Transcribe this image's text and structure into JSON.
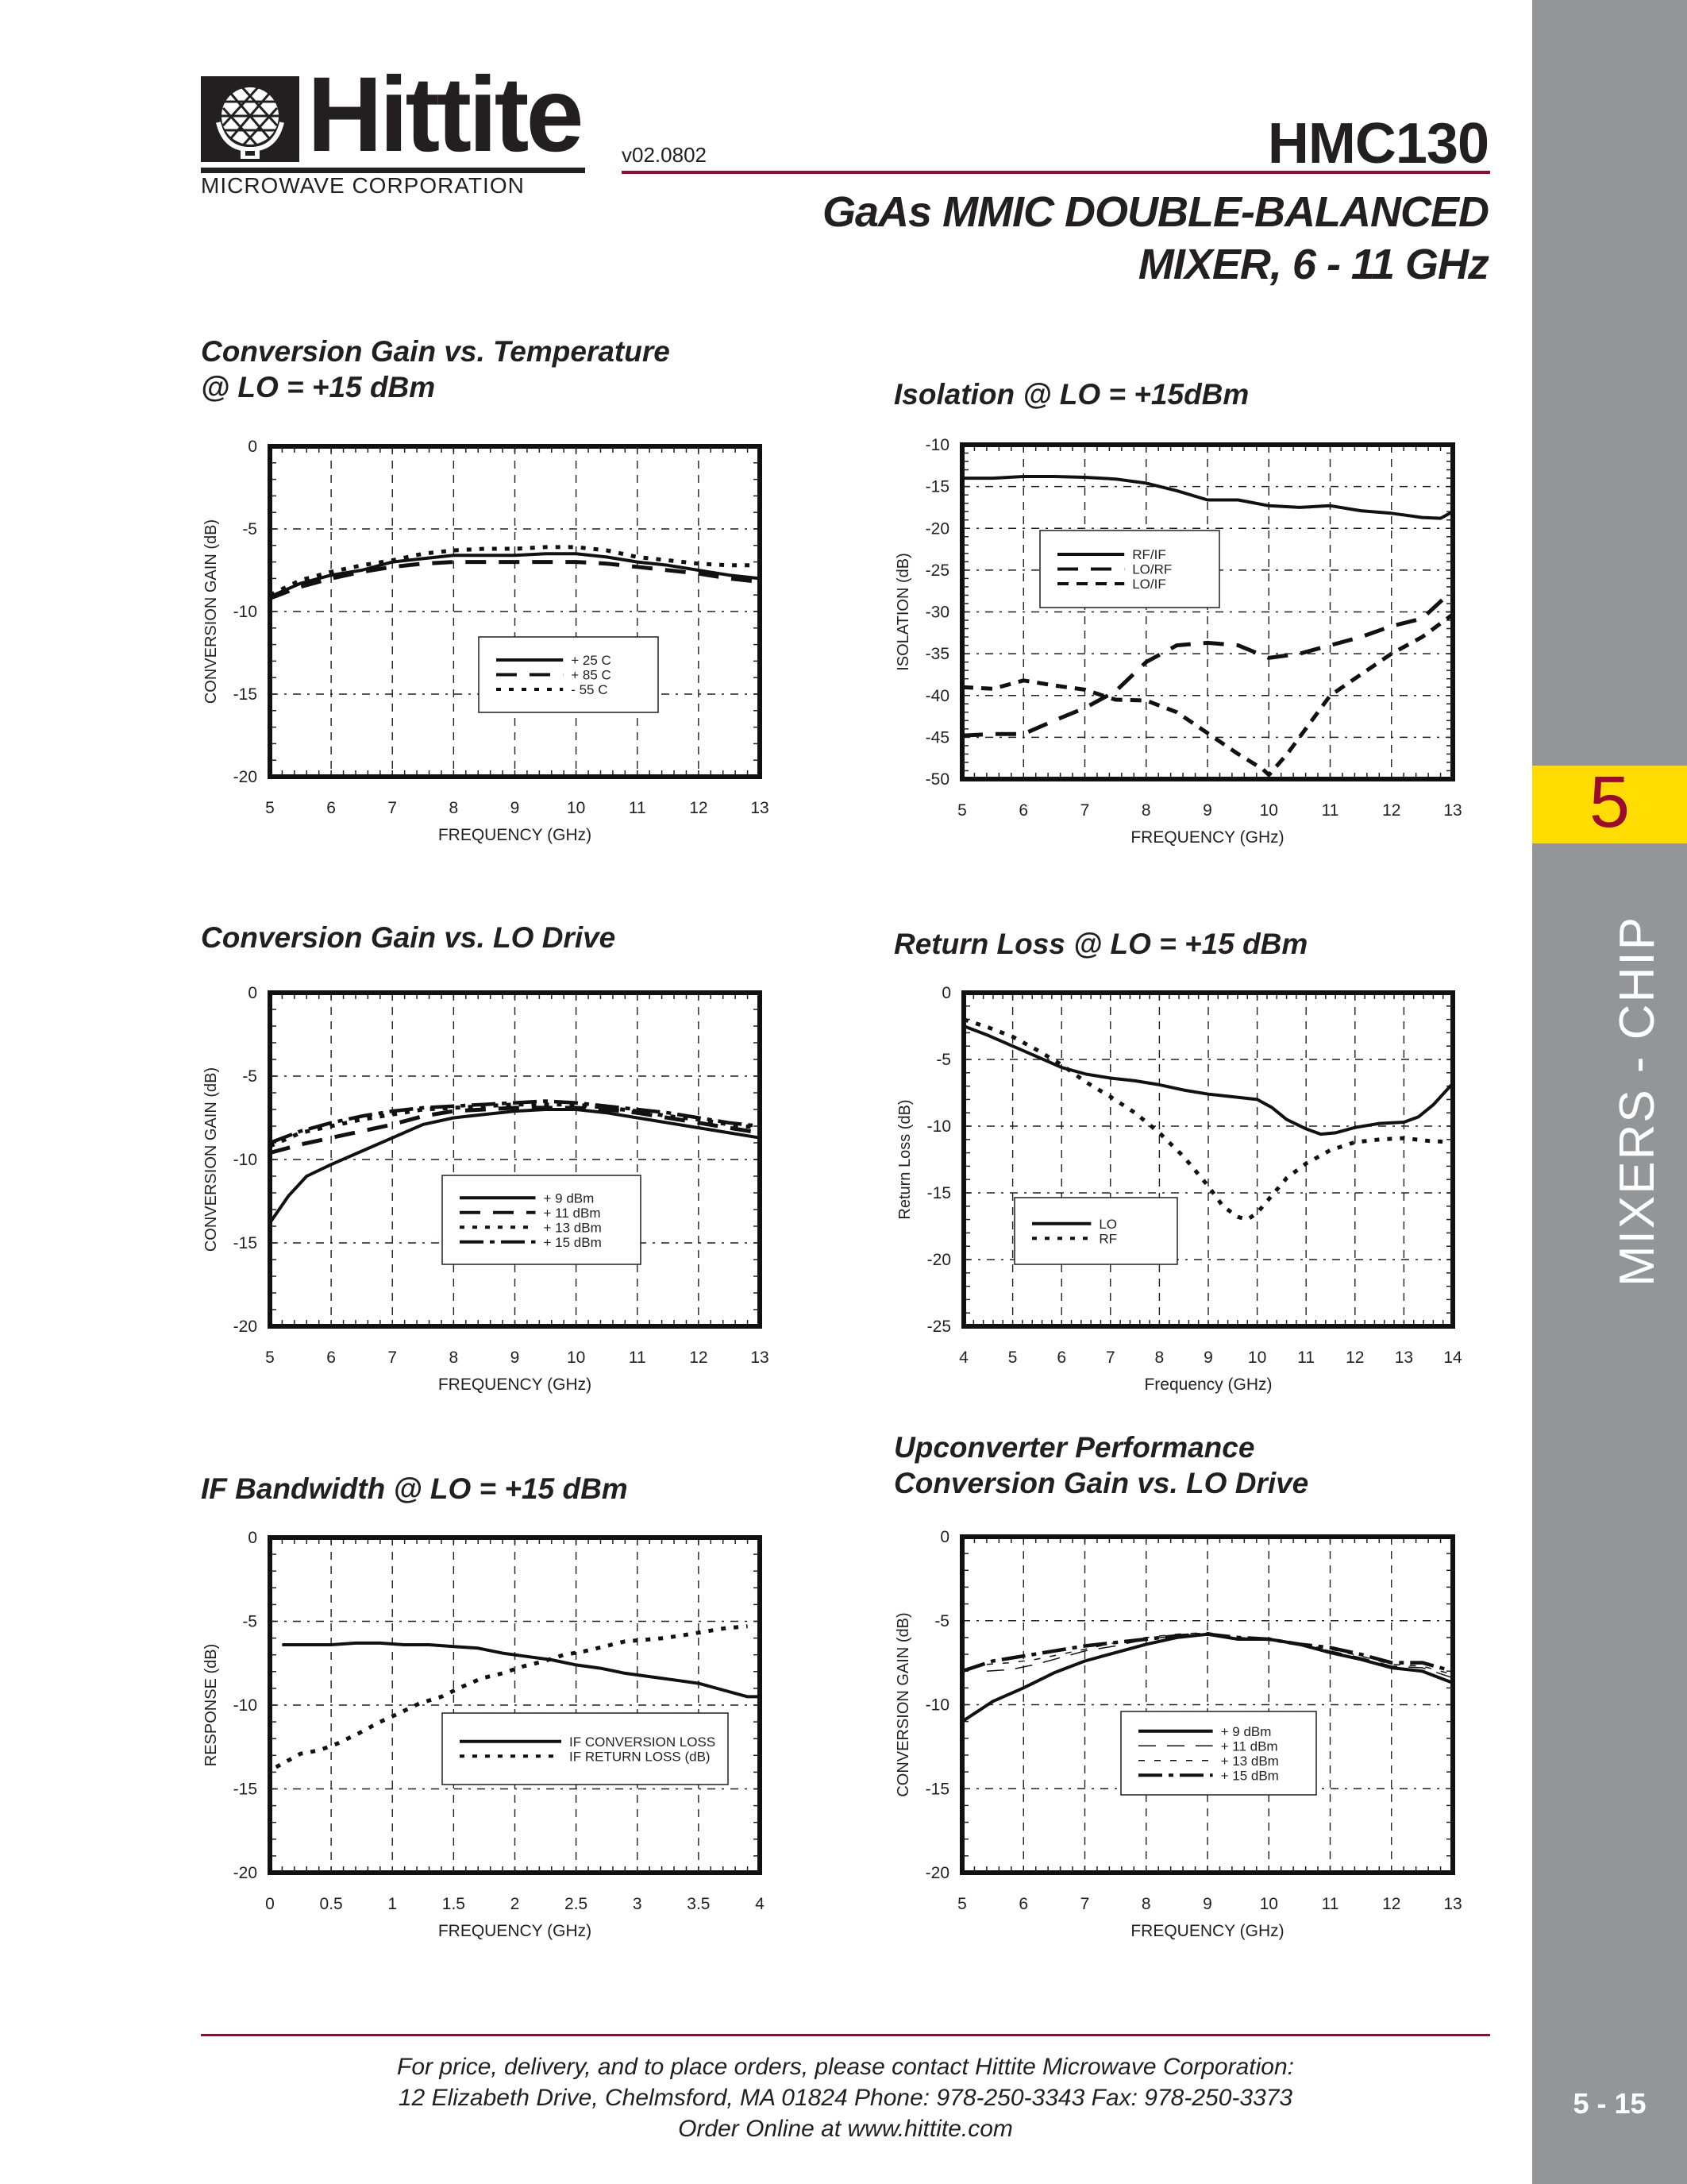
{
  "header": {
    "logo_word": "Hittite",
    "logo_corp": "MICROWAVE CORPORATION",
    "version": "v02.0802",
    "part_number": "HMC130",
    "subtitle_line1": "GaAs MMIC DOUBLE-BALANCED",
    "subtitle_line2": "MIXER, 6 - 11 GHz"
  },
  "sidebar": {
    "section_number": "5",
    "section_label": "MIXERS - CHIP",
    "page_number": "5 - 15"
  },
  "footer": {
    "line1": "For price, delivery, and to place orders, please contact Hittite Microwave Corporation:",
    "line2": "12 Elizabeth Drive, Chelmsford, MA 01824 Phone: 978-250-3343  Fax: 978-250-3373",
    "line3": "Order Online at www.hittite.com"
  },
  "colors": {
    "accent_red": "#9b0a2e",
    "tab_yellow": "#ffdd00",
    "sidebar_gray": "#939598",
    "ink": "#231f20"
  },
  "chart_data": [
    {
      "id": "gain_vs_temp",
      "type": "line",
      "title": "Conversion Gain vs. Temperature @ LO = +15 dBm",
      "title_lines": [
        "Conversion Gain vs. Temperature",
        "@ LO = +15 dBm"
      ],
      "xlabel": "FREQUENCY (GHz)",
      "ylabel": "CONVERSION GAIN (dB)",
      "xlim": [
        5,
        13
      ],
      "ylim": [
        -20,
        0
      ],
      "xticks": [
        5,
        6,
        7,
        8,
        9,
        10,
        11,
        12,
        13
      ],
      "yticks": [
        0,
        -5,
        -10,
        -15,
        -20
      ],
      "grid": true,
      "legend_position": "center-lower",
      "series": [
        {
          "name": "+ 25 C",
          "style": "solid",
          "x": [
            5,
            5.5,
            6,
            6.5,
            7,
            7.5,
            8,
            8.5,
            9,
            9.5,
            10,
            10.5,
            11,
            11.5,
            12,
            12.5,
            13
          ],
          "y": [
            -9.1,
            -8.3,
            -7.8,
            -7.5,
            -7.0,
            -6.8,
            -6.6,
            -6.6,
            -6.6,
            -6.5,
            -6.5,
            -6.7,
            -7.0,
            -7.2,
            -7.5,
            -7.8,
            -8.0
          ]
        },
        {
          "name": "+ 85 C",
          "style": "longdash",
          "x": [
            5,
            5.5,
            6,
            6.5,
            7,
            7.5,
            8,
            8.5,
            9,
            9.5,
            10,
            10.5,
            11,
            11.5,
            12,
            12.5,
            13
          ],
          "y": [
            -9.2,
            -8.5,
            -8.0,
            -7.6,
            -7.3,
            -7.1,
            -7.0,
            -7.0,
            -7.0,
            -7.0,
            -7.0,
            -7.1,
            -7.3,
            -7.5,
            -7.7,
            -8.0,
            -8.2
          ]
        },
        {
          "name": "- 55 C",
          "style": "dotted",
          "x": [
            5,
            5.5,
            6,
            6.5,
            7,
            7.5,
            8,
            8.5,
            9,
            9.5,
            10,
            10.5,
            11,
            11.5,
            12,
            12.5,
            13
          ],
          "y": [
            -9.0,
            -8.1,
            -7.6,
            -7.2,
            -6.9,
            -6.5,
            -6.3,
            -6.2,
            -6.2,
            -6.1,
            -6.1,
            -6.3,
            -6.7,
            -6.9,
            -7.1,
            -7.2,
            -7.2
          ]
        }
      ]
    },
    {
      "id": "isolation",
      "type": "line",
      "title": "Isolation @ LO = +15dBm",
      "title_lines": [
        "Isolation @ LO = +15dBm"
      ],
      "xlabel": "FREQUENCY (GHz)",
      "ylabel": "ISOLATION (dB)",
      "xlim": [
        5,
        13
      ],
      "ylim": [
        -50,
        -10
      ],
      "xticks": [
        5,
        6,
        7,
        8,
        9,
        10,
        11,
        12,
        13
      ],
      "yticks": [
        -10,
        -15,
        -20,
        -25,
        -30,
        -35,
        -40,
        -45,
        -50
      ],
      "grid": true,
      "legend_position": "upper-left",
      "series": [
        {
          "name": "RF/IF",
          "style": "solid",
          "x": [
            5,
            5.5,
            6,
            6.5,
            7,
            7.5,
            8,
            8.5,
            9,
            9.5,
            10,
            10.5,
            11,
            11.5,
            12,
            12.5,
            12.8,
            13
          ],
          "y": [
            -14.0,
            -14.0,
            -13.8,
            -13.8,
            -13.9,
            -14.1,
            -14.6,
            -15.5,
            -16.6,
            -16.6,
            -17.3,
            -17.5,
            -17.3,
            -17.9,
            -18.2,
            -18.7,
            -18.8,
            -18.0
          ]
        },
        {
          "name": "LO/RF",
          "style": "longdash",
          "x": [
            5,
            5.5,
            6,
            6.5,
            7,
            7.5,
            8,
            8.5,
            9,
            9.5,
            10,
            10.5,
            11,
            11.5,
            12,
            12.5,
            13
          ],
          "y": [
            -44.8,
            -44.6,
            -44.6,
            -43.0,
            -41.5,
            -39.5,
            -36.0,
            -34.0,
            -33.7,
            -34.0,
            -35.5,
            -35.0,
            -34.0,
            -33.0,
            -31.7,
            -30.8,
            -27.4
          ]
        },
        {
          "name": "LO/IF",
          "style": "dashed",
          "x": [
            5,
            5.5,
            6,
            6.5,
            7,
            7.5,
            8,
            8.5,
            9,
            9.5,
            9.9,
            10,
            10.3,
            10.6,
            11,
            11.5,
            12,
            12.5,
            13
          ],
          "y": [
            -39.0,
            -39.2,
            -38.2,
            -38.8,
            -39.3,
            -40.5,
            -40.6,
            -42.0,
            -44.5,
            -47.0,
            -48.8,
            -49.5,
            -47.0,
            -44.0,
            -40.0,
            -37.5,
            -35.0,
            -33.0,
            -30.3
          ]
        }
      ]
    },
    {
      "id": "gain_vs_lo",
      "type": "line",
      "title": "Conversion Gain vs. LO Drive",
      "title_lines": [
        "Conversion Gain vs. LO Drive"
      ],
      "xlabel": "FREQUENCY (GHz)",
      "ylabel": "CONVERSION GAIN (dB)",
      "xlim": [
        5,
        13
      ],
      "ylim": [
        -20,
        0
      ],
      "xticks": [
        5,
        6,
        7,
        8,
        9,
        10,
        11,
        12,
        13
      ],
      "yticks": [
        0,
        -5,
        -10,
        -15,
        -20
      ],
      "grid": true,
      "legend_position": "center-lower",
      "series": [
        {
          "name": "+ 9 dBm",
          "style": "solid",
          "x": [
            5,
            5.3,
            5.6,
            6,
            6.5,
            7,
            7.5,
            8,
            8.5,
            9,
            9.5,
            10,
            10.5,
            11,
            11.5,
            12,
            12.5,
            13
          ],
          "y": [
            -13.8,
            -12.2,
            -11.0,
            -10.3,
            -9.5,
            -8.7,
            -7.9,
            -7.5,
            -7.3,
            -7.1,
            -7.0,
            -7.0,
            -7.2,
            -7.5,
            -7.8,
            -8.1,
            -8.4,
            -8.7
          ]
        },
        {
          "name": "+ 11 dBm",
          "style": "longdash",
          "x": [
            5,
            5.5,
            6,
            6.5,
            7,
            7.5,
            8,
            8.5,
            9,
            9.5,
            10,
            10.5,
            11,
            11.5,
            12,
            12.5,
            13
          ],
          "y": [
            -9.6,
            -9.1,
            -8.7,
            -8.3,
            -7.9,
            -7.4,
            -7.1,
            -7.0,
            -6.9,
            -6.9,
            -6.9,
            -7.0,
            -7.2,
            -7.5,
            -7.8,
            -8.1,
            -8.4
          ]
        },
        {
          "name": "+ 13 dBm",
          "style": "dotted",
          "x": [
            5,
            5.5,
            6,
            6.5,
            7,
            7.5,
            8,
            8.5,
            9,
            9.5,
            10,
            10.5,
            11,
            11.5,
            12,
            12.5,
            13
          ],
          "y": [
            -9.2,
            -8.4,
            -8.0,
            -7.6,
            -7.3,
            -7.0,
            -6.9,
            -6.8,
            -6.7,
            -6.7,
            -6.7,
            -6.9,
            -7.1,
            -7.4,
            -7.6,
            -7.9,
            -8.1
          ]
        },
        {
          "name": "+ 15 dBm",
          "style": "dashdot",
          "x": [
            5,
            5.5,
            6,
            6.5,
            7,
            7.5,
            8,
            8.5,
            9,
            9.5,
            10,
            10.5,
            11,
            11.5,
            12,
            12.5,
            13
          ],
          "y": [
            -9.0,
            -8.3,
            -7.8,
            -7.4,
            -7.1,
            -6.9,
            -6.8,
            -6.7,
            -6.6,
            -6.5,
            -6.6,
            -6.8,
            -7.0,
            -7.2,
            -7.5,
            -7.8,
            -8.0
          ]
        }
      ]
    },
    {
      "id": "return_loss",
      "type": "line",
      "title": "Return Loss @ LO = +15 dBm",
      "title_lines": [
        "Return Loss @ LO = +15 dBm"
      ],
      "xlabel": "Frequency (GHz)",
      "ylabel": "Return Loss (dB)",
      "xlim": [
        4,
        14
      ],
      "ylim": [
        -25,
        0
      ],
      "xticks": [
        4,
        5,
        6,
        7,
        8,
        9,
        10,
        11,
        12,
        13,
        14
      ],
      "yticks": [
        0,
        -5,
        -10,
        -15,
        -20,
        -25
      ],
      "grid": true,
      "legend_position": "lower-left",
      "series": [
        {
          "name": "LO",
          "style": "solid",
          "x": [
            4,
            4.5,
            5,
            5.5,
            6,
            6.5,
            7,
            7.5,
            8,
            8.5,
            9,
            9.5,
            10,
            10.3,
            10.6,
            11,
            11.3,
            11.6,
            12,
            12.5,
            13,
            13.3,
            13.6,
            14
          ],
          "y": [
            -2.5,
            -3.2,
            -4.0,
            -4.8,
            -5.6,
            -6.1,
            -6.4,
            -6.6,
            -6.9,
            -7.3,
            -7.6,
            -7.8,
            -8.0,
            -8.6,
            -9.5,
            -10.2,
            -10.6,
            -10.5,
            -10.1,
            -9.8,
            -9.7,
            -9.3,
            -8.4,
            -6.8
          ]
        },
        {
          "name": "RF",
          "style": "dotted",
          "x": [
            4,
            4.5,
            5,
            5.5,
            6,
            6.5,
            7,
            7.5,
            8,
            8.5,
            9,
            9.3,
            9.6,
            9.8,
            10,
            10.3,
            10.6,
            11,
            11.5,
            12,
            12.5,
            13,
            13.5,
            14
          ],
          "y": [
            -2.0,
            -2.6,
            -3.3,
            -4.3,
            -5.4,
            -6.7,
            -7.8,
            -9.0,
            -10.5,
            -12.3,
            -14.5,
            -16.0,
            -16.8,
            -17.0,
            -16.5,
            -15.2,
            -13.9,
            -12.8,
            -11.8,
            -11.2,
            -11.0,
            -10.9,
            -11.1,
            -11.2
          ]
        }
      ]
    },
    {
      "id": "if_bandwidth",
      "type": "line",
      "title": "IF Bandwidth @ LO = +15 dBm",
      "title_lines": [
        "IF Bandwidth @ LO = +15 dBm"
      ],
      "xlabel": "FREQUENCY (GHz)",
      "ylabel": "RESPONSE (dB)",
      "xlim": [
        0,
        4
      ],
      "ylim": [
        -20,
        0
      ],
      "xticks": [
        0,
        0.5,
        1,
        1.5,
        2,
        2.5,
        3,
        3.5,
        4
      ],
      "yticks": [
        0,
        -5,
        -10,
        -15,
        -20
      ],
      "grid": true,
      "legend_position": "lower-right",
      "series": [
        {
          "name": "IF CONVERSION LOSS",
          "style": "solid",
          "x": [
            0.1,
            0.3,
            0.5,
            0.7,
            0.9,
            1.1,
            1.3,
            1.5,
            1.7,
            1.9,
            2.1,
            2.3,
            2.5,
            2.7,
            2.9,
            3.1,
            3.3,
            3.5,
            3.7,
            3.9,
            4.0
          ],
          "y": [
            -6.4,
            -6.4,
            -6.4,
            -6.3,
            -6.3,
            -6.4,
            -6.4,
            -6.5,
            -6.6,
            -6.9,
            -7.1,
            -7.3,
            -7.6,
            -7.8,
            -8.1,
            -8.3,
            -8.5,
            -8.7,
            -9.1,
            -9.5,
            -9.5
          ]
        },
        {
          "name": "IF RETURN LOSS (dB)",
          "style": "dotted",
          "x": [
            0.05,
            0.25,
            0.4,
            0.55,
            0.72,
            0.9,
            1.05,
            1.22,
            1.4,
            1.57,
            1.73,
            1.9,
            2.06,
            2.23,
            2.4,
            2.56,
            2.73,
            2.9,
            3.06,
            3.22,
            3.4,
            3.56,
            3.73,
            3.9
          ],
          "y": [
            -13.7,
            -12.9,
            -12.7,
            -12.3,
            -11.7,
            -11.0,
            -10.5,
            -9.9,
            -9.5,
            -8.9,
            -8.4,
            -8.1,
            -7.7,
            -7.4,
            -7.0,
            -6.8,
            -6.5,
            -6.2,
            -6.1,
            -6.0,
            -5.8,
            -5.6,
            -5.4,
            -5.3
          ]
        }
      ]
    },
    {
      "id": "upconverter_gain_vs_lo",
      "type": "line",
      "title": "Upconverter Performance Conversion Gain vs. LO Drive",
      "title_lines": [
        "Upconverter Performance",
        "Conversion Gain vs. LO Drive"
      ],
      "xlabel": "FREQUENCY (GHz)",
      "ylabel": "CONVERSION GAIN (dB)",
      "xlim": [
        5,
        13
      ],
      "ylim": [
        -20,
        0
      ],
      "xticks": [
        5,
        6,
        7,
        8,
        9,
        10,
        11,
        12,
        13
      ],
      "yticks": [
        0,
        -5,
        -10,
        -15,
        -20
      ],
      "grid": true,
      "legend_position": "center-lower",
      "series": [
        {
          "name": "+ 9 dBm",
          "style": "solid",
          "x": [
            5,
            5.5,
            6,
            6.5,
            7,
            7.5,
            8,
            8.5,
            9,
            9.5,
            10,
            10.5,
            11,
            11.5,
            12,
            12.5,
            13
          ],
          "y": [
            -11.0,
            -9.8,
            -9.0,
            -8.1,
            -7.4,
            -6.9,
            -6.4,
            -6.0,
            -5.8,
            -6.1,
            -6.1,
            -6.4,
            -6.9,
            -7.3,
            -7.8,
            -8.0,
            -8.7
          ]
        },
        {
          "name": "+ 11 dBm",
          "style": "thinlongdash",
          "x": [
            5.4,
            5.8,
            6.2,
            6.6,
            7,
            7.5,
            8,
            8.5,
            9,
            9.5,
            10,
            10.5,
            11,
            11.5,
            12,
            12.5,
            13
          ],
          "y": [
            -8.0,
            -7.9,
            -7.6,
            -7.2,
            -6.8,
            -6.5,
            -6.1,
            -5.9,
            -5.8,
            -6.0,
            -6.1,
            -6.4,
            -6.8,
            -7.2,
            -7.7,
            -7.8,
            -8.4
          ]
        },
        {
          "name": "+ 13 dBm",
          "style": "thindash",
          "x": [
            5.4,
            5.8,
            6.2,
            6.6,
            7,
            7.5,
            8,
            8.5,
            9,
            9.5,
            10,
            10.5,
            11,
            11.5,
            12,
            12.5,
            13
          ],
          "y": [
            -7.6,
            -7.5,
            -7.3,
            -7.0,
            -6.7,
            -6.3,
            -6.0,
            -5.8,
            -5.7,
            -6.0,
            -6.1,
            -6.4,
            -6.7,
            -7.1,
            -7.6,
            -7.7,
            -8.2
          ]
        },
        {
          "name": "+ 15 dBm",
          "style": "dashdot",
          "x": [
            5,
            5.5,
            6,
            6.5,
            7,
            7.5,
            8,
            8.5,
            9,
            9.5,
            10,
            10.5,
            11,
            11.5,
            12,
            12.5,
            13
          ],
          "y": [
            -8.0,
            -7.4,
            -7.1,
            -6.8,
            -6.5,
            -6.3,
            -6.1,
            -5.9,
            -5.8,
            -6.0,
            -6.1,
            -6.4,
            -6.6,
            -7.0,
            -7.5,
            -7.5,
            -8.0
          ]
        }
      ]
    }
  ]
}
